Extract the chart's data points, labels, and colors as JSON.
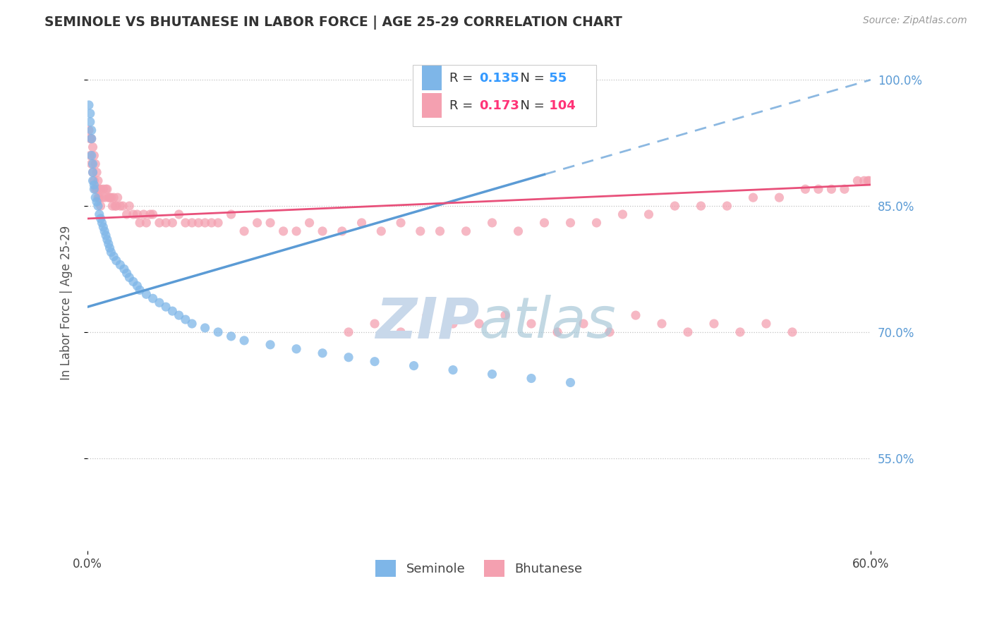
{
  "title": "SEMINOLE VS BHUTANESE IN LABOR FORCE | AGE 25-29 CORRELATION CHART",
  "source_text": "Source: ZipAtlas.com",
  "ylabel": "In Labor Force | Age 25-29",
  "xlim": [
    0.0,
    0.6
  ],
  "ylim": [
    0.44,
    1.03
  ],
  "xtick_positions": [
    0.0,
    0.6
  ],
  "xtick_labels": [
    "0.0%",
    "60.0%"
  ],
  "ytick_positions": [
    0.55,
    0.7,
    0.85,
    1.0
  ],
  "ytick_labels": [
    "55.0%",
    "70.0%",
    "85.0%",
    "100.0%"
  ],
  "seminole_R": 0.135,
  "seminole_N": 55,
  "bhutanese_R": 0.173,
  "bhutanese_N": 104,
  "seminole_color": "#7EB6E8",
  "bhutanese_color": "#F4A0B0",
  "seminole_line_color": "#5B9BD5",
  "bhutanese_line_color": "#E8507A",
  "legend_R_color_seminole": "#3399FF",
  "legend_R_color_bhutanese": "#FF3377",
  "watermark_color": "#C8D8EA",
  "background_color": "#FFFFFF",
  "seminole_x": [
    0.001,
    0.002,
    0.002,
    0.003,
    0.003,
    0.003,
    0.004,
    0.004,
    0.004,
    0.005,
    0.005,
    0.006,
    0.007,
    0.008,
    0.009,
    0.01,
    0.011,
    0.012,
    0.013,
    0.014,
    0.015,
    0.016,
    0.017,
    0.018,
    0.02,
    0.022,
    0.025,
    0.028,
    0.03,
    0.032,
    0.035,
    0.038,
    0.04,
    0.045,
    0.05,
    0.055,
    0.06,
    0.065,
    0.07,
    0.075,
    0.08,
    0.09,
    0.1,
    0.11,
    0.12,
    0.14,
    0.16,
    0.18,
    0.2,
    0.22,
    0.25,
    0.28,
    0.31,
    0.34,
    0.37
  ],
  "seminole_y": [
    0.97,
    0.96,
    0.95,
    0.94,
    0.93,
    0.91,
    0.9,
    0.89,
    0.88,
    0.875,
    0.87,
    0.86,
    0.855,
    0.85,
    0.84,
    0.835,
    0.83,
    0.825,
    0.82,
    0.815,
    0.81,
    0.805,
    0.8,
    0.795,
    0.79,
    0.785,
    0.78,
    0.775,
    0.77,
    0.765,
    0.76,
    0.755,
    0.75,
    0.745,
    0.74,
    0.735,
    0.73,
    0.725,
    0.72,
    0.715,
    0.71,
    0.705,
    0.7,
    0.695,
    0.69,
    0.685,
    0.68,
    0.675,
    0.67,
    0.665,
    0.66,
    0.655,
    0.65,
    0.645,
    0.64
  ],
  "bhutanese_x": [
    0.001,
    0.002,
    0.002,
    0.003,
    0.003,
    0.004,
    0.004,
    0.005,
    0.005,
    0.006,
    0.006,
    0.007,
    0.007,
    0.008,
    0.008,
    0.009,
    0.009,
    0.01,
    0.01,
    0.011,
    0.012,
    0.013,
    0.014,
    0.015,
    0.016,
    0.017,
    0.018,
    0.019,
    0.02,
    0.021,
    0.022,
    0.023,
    0.025,
    0.027,
    0.03,
    0.032,
    0.035,
    0.038,
    0.04,
    0.043,
    0.045,
    0.048,
    0.05,
    0.055,
    0.06,
    0.065,
    0.07,
    0.075,
    0.08,
    0.085,
    0.09,
    0.095,
    0.1,
    0.11,
    0.12,
    0.13,
    0.14,
    0.15,
    0.16,
    0.17,
    0.18,
    0.195,
    0.21,
    0.225,
    0.24,
    0.255,
    0.27,
    0.29,
    0.31,
    0.33,
    0.35,
    0.37,
    0.39,
    0.41,
    0.43,
    0.45,
    0.47,
    0.49,
    0.51,
    0.53,
    0.55,
    0.56,
    0.57,
    0.58,
    0.59,
    0.595,
    0.598,
    0.599,
    0.2,
    0.22,
    0.24,
    0.26,
    0.28,
    0.3,
    0.32,
    0.34,
    0.36,
    0.38,
    0.4,
    0.42,
    0.44,
    0.46,
    0.48,
    0.5,
    0.52,
    0.54
  ],
  "bhutanese_y": [
    0.94,
    0.93,
    0.91,
    0.93,
    0.9,
    0.92,
    0.89,
    0.91,
    0.88,
    0.9,
    0.87,
    0.89,
    0.87,
    0.88,
    0.86,
    0.87,
    0.86,
    0.87,
    0.85,
    0.86,
    0.87,
    0.86,
    0.87,
    0.87,
    0.86,
    0.86,
    0.86,
    0.85,
    0.86,
    0.85,
    0.85,
    0.86,
    0.85,
    0.85,
    0.84,
    0.85,
    0.84,
    0.84,
    0.83,
    0.84,
    0.83,
    0.84,
    0.84,
    0.83,
    0.83,
    0.83,
    0.84,
    0.83,
    0.83,
    0.83,
    0.83,
    0.83,
    0.83,
    0.84,
    0.82,
    0.83,
    0.83,
    0.82,
    0.82,
    0.83,
    0.82,
    0.82,
    0.83,
    0.82,
    0.83,
    0.82,
    0.82,
    0.82,
    0.83,
    0.82,
    0.83,
    0.83,
    0.83,
    0.84,
    0.84,
    0.85,
    0.85,
    0.85,
    0.86,
    0.86,
    0.87,
    0.87,
    0.87,
    0.87,
    0.88,
    0.88,
    0.88,
    0.88,
    0.7,
    0.71,
    0.7,
    0.72,
    0.71,
    0.71,
    0.72,
    0.71,
    0.7,
    0.71,
    0.7,
    0.72,
    0.71,
    0.7,
    0.71,
    0.7,
    0.71,
    0.7
  ]
}
